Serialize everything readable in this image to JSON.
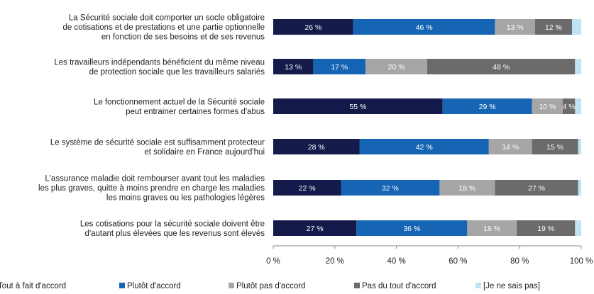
{
  "chart_data": {
    "type": "bar",
    "orientation": "horizontal",
    "stacked": true,
    "categories": [
      [
        "La Sécurité sociale doit comporter un socle obligatoire",
        "de cotisations et de prestations et une partie optionnelle",
        "en fonction de ses besoins et de ses revenus"
      ],
      [
        "Les travailleurs indépendants bénéficient du même niveau",
        "de protection sociale que les travailleurs salariés"
      ],
      [
        "Le fonctionnement actuel de la Sécurité sociale",
        "peut entrainer certaines formes d'abus"
      ],
      [
        "Le système de sécurité sociale est suffisamment protecteur",
        "et solidaire en France aujourd'hui"
      ],
      [
        "L'assurance maladie doit rembourser avant tout les maladies",
        "les plus graves, quitte à moins prendre en charge les maladies",
        "les moins graves ou les pathologies légères"
      ],
      [
        "Les cotisations pour la sécurité sociale doivent être",
        "d'autant plus élevées que les revenus sont élevés"
      ]
    ],
    "series": [
      {
        "name": "Tout à fait d'accord",
        "color": "#141a4a",
        "values": [
          26,
          13,
          55,
          28,
          22,
          27
        ]
      },
      {
        "name": "Plutôt d'accord",
        "color": "#1565b4",
        "values": [
          46,
          17,
          29,
          42,
          32,
          36
        ]
      },
      {
        "name": "Plutôt pas d'accord",
        "color": "#a6a6a6",
        "values": [
          13,
          20,
          10,
          14,
          18,
          16
        ]
      },
      {
        "name": "Pas du tout d'accord",
        "color": "#6b6b6b",
        "values": [
          12,
          48,
          4,
          15,
          27,
          19
        ]
      },
      {
        "name": "[Je ne sais pas]",
        "color": "#bfe3f5",
        "values": [
          3,
          2,
          2,
          1,
          1,
          2
        ]
      }
    ],
    "data_labels": [
      [
        "26 %",
        "46 %",
        "13 %",
        "12 %",
        ""
      ],
      [
        "13 %",
        "17 %",
        "20 %",
        "48 %",
        ""
      ],
      [
        "55 %",
        "29 %",
        "10 %",
        "4 %",
        ""
      ],
      [
        "28 %",
        "42 %",
        "14 %",
        "15 %",
        ""
      ],
      [
        "22 %",
        "32 %",
        "18 %",
        "27 %",
        ""
      ],
      [
        "27 %",
        "36 %",
        "16 %",
        "19 %",
        ""
      ]
    ],
    "xlim": [
      0,
      100
    ],
    "xticks": [
      "0 %",
      "20 %",
      "40 %",
      "60 %",
      "80 %",
      "100 %"
    ],
    "legend_position": "bottom",
    "grid": false,
    "title": "",
    "xlabel": "",
    "ylabel": ""
  }
}
